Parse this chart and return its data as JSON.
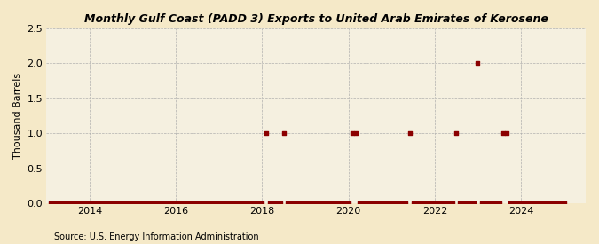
{
  "title": "Monthly Gulf Coast (PADD 3) Exports to United Arab Emirates of Kerosene",
  "ylabel": "Thousand Barrels",
  "source": "Source: U.S. Energy Information Administration",
  "background_color": "#f5e9c8",
  "plot_bg_color": "#f5f0e0",
  "marker_color": "#8b0000",
  "ylim": [
    0,
    2.5
  ],
  "yticks": [
    0.0,
    0.5,
    1.0,
    1.5,
    2.0,
    2.5
  ],
  "xlim_start": 2013.0,
  "xlim_end": 2025.5,
  "xticks": [
    2014,
    2016,
    2018,
    2020,
    2022,
    2024
  ],
  "data_points": [
    [
      2013.0833,
      0
    ],
    [
      2013.1667,
      0
    ],
    [
      2013.25,
      0
    ],
    [
      2013.3333,
      0
    ],
    [
      2013.4167,
      0
    ],
    [
      2013.5,
      0
    ],
    [
      2013.5833,
      0
    ],
    [
      2013.6667,
      0
    ],
    [
      2013.75,
      0
    ],
    [
      2013.8333,
      0
    ],
    [
      2013.9167,
      0
    ],
    [
      2014.0,
      0
    ],
    [
      2014.0833,
      0
    ],
    [
      2014.1667,
      0
    ],
    [
      2014.25,
      0
    ],
    [
      2014.3333,
      0
    ],
    [
      2014.4167,
      0
    ],
    [
      2014.5,
      0
    ],
    [
      2014.5833,
      0
    ],
    [
      2014.6667,
      0
    ],
    [
      2014.75,
      0
    ],
    [
      2014.8333,
      0
    ],
    [
      2014.9167,
      0
    ],
    [
      2015.0,
      0
    ],
    [
      2015.0833,
      0
    ],
    [
      2015.1667,
      0
    ],
    [
      2015.25,
      0
    ],
    [
      2015.3333,
      0
    ],
    [
      2015.4167,
      0
    ],
    [
      2015.5,
      0
    ],
    [
      2015.5833,
      0
    ],
    [
      2015.6667,
      0
    ],
    [
      2015.75,
      0
    ],
    [
      2015.8333,
      0
    ],
    [
      2015.9167,
      0
    ],
    [
      2016.0,
      0
    ],
    [
      2016.0833,
      0
    ],
    [
      2016.1667,
      0
    ],
    [
      2016.25,
      0
    ],
    [
      2016.3333,
      0
    ],
    [
      2016.4167,
      0
    ],
    [
      2016.5,
      0
    ],
    [
      2016.5833,
      0
    ],
    [
      2016.6667,
      0
    ],
    [
      2016.75,
      0
    ],
    [
      2016.8333,
      0
    ],
    [
      2016.9167,
      0
    ],
    [
      2017.0,
      0
    ],
    [
      2017.0833,
      0
    ],
    [
      2017.1667,
      0
    ],
    [
      2017.25,
      0
    ],
    [
      2017.3333,
      0
    ],
    [
      2017.4167,
      0
    ],
    [
      2017.5,
      0
    ],
    [
      2017.5833,
      0
    ],
    [
      2017.6667,
      0
    ],
    [
      2017.75,
      0
    ],
    [
      2017.8333,
      0
    ],
    [
      2017.9167,
      0
    ],
    [
      2018.0,
      0
    ],
    [
      2018.0833,
      1.0
    ],
    [
      2018.1667,
      0
    ],
    [
      2018.25,
      0
    ],
    [
      2018.3333,
      0
    ],
    [
      2018.4167,
      0
    ],
    [
      2018.5,
      1.0
    ],
    [
      2018.5833,
      0
    ],
    [
      2018.6667,
      0
    ],
    [
      2018.75,
      0
    ],
    [
      2018.8333,
      0
    ],
    [
      2018.9167,
      0
    ],
    [
      2019.0,
      0
    ],
    [
      2019.0833,
      0
    ],
    [
      2019.1667,
      0
    ],
    [
      2019.25,
      0
    ],
    [
      2019.3333,
      0
    ],
    [
      2019.4167,
      0
    ],
    [
      2019.5,
      0
    ],
    [
      2019.5833,
      0
    ],
    [
      2019.6667,
      0
    ],
    [
      2019.75,
      0
    ],
    [
      2019.8333,
      0
    ],
    [
      2019.9167,
      0
    ],
    [
      2020.0,
      0
    ],
    [
      2020.0833,
      1.0
    ],
    [
      2020.1667,
      1.0
    ],
    [
      2020.25,
      0
    ],
    [
      2020.3333,
      0
    ],
    [
      2020.4167,
      0
    ],
    [
      2020.5,
      0
    ],
    [
      2020.5833,
      0
    ],
    [
      2020.6667,
      0
    ],
    [
      2020.75,
      0
    ],
    [
      2020.8333,
      0
    ],
    [
      2020.9167,
      0
    ],
    [
      2021.0,
      0
    ],
    [
      2021.0833,
      0
    ],
    [
      2021.1667,
      0
    ],
    [
      2021.25,
      0
    ],
    [
      2021.3333,
      0
    ],
    [
      2021.4167,
      1.0
    ],
    [
      2021.5,
      0
    ],
    [
      2021.5833,
      0
    ],
    [
      2021.6667,
      0
    ],
    [
      2021.75,
      0
    ],
    [
      2021.8333,
      0
    ],
    [
      2021.9167,
      0
    ],
    [
      2022.0,
      0
    ],
    [
      2022.0833,
      0
    ],
    [
      2022.1667,
      0
    ],
    [
      2022.25,
      0
    ],
    [
      2022.3333,
      0
    ],
    [
      2022.4167,
      0
    ],
    [
      2022.5,
      1.0
    ],
    [
      2022.5833,
      0
    ],
    [
      2022.6667,
      0
    ],
    [
      2022.75,
      0
    ],
    [
      2022.8333,
      0
    ],
    [
      2022.9167,
      0
    ],
    [
      2023.0,
      2.0
    ],
    [
      2023.0833,
      0
    ],
    [
      2023.1667,
      0
    ],
    [
      2023.25,
      0
    ],
    [
      2023.3333,
      0
    ],
    [
      2023.4167,
      0
    ],
    [
      2023.5,
      0
    ],
    [
      2023.5833,
      1.0
    ],
    [
      2023.6667,
      1.0
    ],
    [
      2023.75,
      0
    ],
    [
      2023.8333,
      0
    ],
    [
      2023.9167,
      0
    ],
    [
      2024.0,
      0
    ],
    [
      2024.0833,
      0
    ],
    [
      2024.1667,
      0
    ],
    [
      2024.25,
      0
    ],
    [
      2024.3333,
      0
    ],
    [
      2024.4167,
      0
    ],
    [
      2024.5,
      0
    ],
    [
      2024.5833,
      0
    ],
    [
      2024.6667,
      0
    ],
    [
      2024.75,
      0
    ],
    [
      2024.8333,
      0
    ],
    [
      2024.9167,
      0
    ],
    [
      2025.0,
      0
    ]
  ]
}
